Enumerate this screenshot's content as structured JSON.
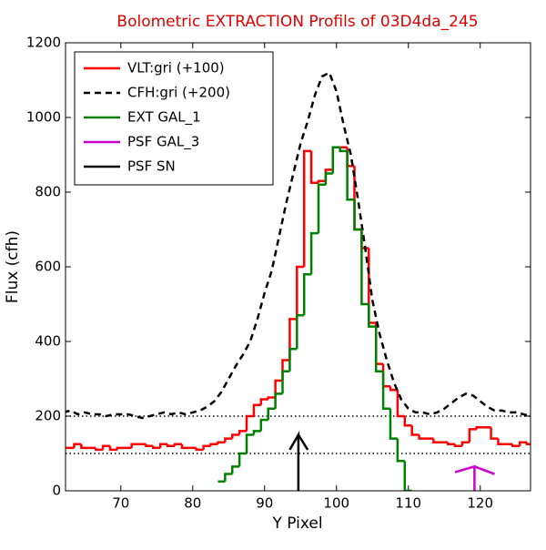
{
  "chart_data": {
    "type": "line",
    "title": "Bolometric EXTRACTION Profils of 03D4da_245",
    "title_color": "#e00000",
    "xlabel": "Y Pixel",
    "ylabel": "Flux (cfh)",
    "xlim": [
      62.3,
      127
    ],
    "ylim": [
      0,
      1200
    ],
    "xticks": [
      70,
      80,
      90,
      100,
      110,
      120
    ],
    "yticks": [
      0,
      200,
      400,
      600,
      800,
      1000,
      1200
    ],
    "legend": "upper left",
    "hlines": [
      100,
      200
    ],
    "series": [
      {
        "name": "VLT:gri (+100)",
        "color": "#ff0000",
        "style": "step",
        "x": [
          62,
          63,
          64,
          65,
          66,
          67,
          68,
          69,
          70,
          71,
          72,
          73,
          74,
          75,
          76,
          77,
          78,
          79,
          80,
          81,
          82,
          83,
          84,
          85,
          86,
          87,
          88,
          89,
          90,
          91,
          92,
          93,
          94,
          95,
          96,
          97,
          98,
          99,
          100,
          101,
          102,
          103,
          104,
          105,
          106,
          107,
          108,
          109,
          110,
          111,
          112,
          113,
          114,
          115,
          116,
          117,
          118,
          119,
          120,
          121,
          122,
          123,
          124,
          125,
          126,
          127
        ],
        "values": [
          115,
          115,
          125,
          115,
          115,
          110,
          120,
          110,
          115,
          115,
          125,
          125,
          120,
          115,
          125,
          120,
          125,
          115,
          115,
          110,
          120,
          125,
          130,
          140,
          150,
          160,
          200,
          230,
          245,
          250,
          295,
          350,
          460,
          600,
          910,
          825,
          830,
          860,
          920,
          920,
          870,
          700,
          650,
          450,
          340,
          280,
          270,
          200,
          175,
          150,
          140,
          140,
          130,
          130,
          125,
          120,
          130,
          165,
          170,
          170,
          140,
          125,
          125,
          120,
          130,
          125
        ]
      },
      {
        "name": "CFH:gri (+200)",
        "color": "#000000",
        "style": "dashed",
        "x": [
          62,
          63,
          64,
          65,
          66,
          67,
          68,
          69,
          70,
          71,
          72,
          73,
          74,
          75,
          76,
          77,
          78,
          79,
          80,
          81,
          82,
          83,
          84,
          85,
          86,
          87,
          88,
          89,
          90,
          91,
          92,
          93,
          94,
          95,
          96,
          97,
          98,
          99,
          100,
          101,
          102,
          103,
          104,
          105,
          106,
          107,
          108,
          109,
          110,
          111,
          112,
          113,
          114,
          115,
          116,
          117,
          118,
          119,
          120,
          121,
          122,
          123,
          124,
          125,
          126,
          127
        ],
        "values": [
          210,
          215,
          205,
          210,
          205,
          205,
          200,
          205,
          205,
          205,
          200,
          195,
          200,
          205,
          210,
          205,
          210,
          205,
          210,
          215,
          225,
          240,
          265,
          300,
          335,
          365,
          400,
          460,
          530,
          590,
          680,
          770,
          850,
          930,
          990,
          1060,
          1110,
          1120,
          1070,
          980,
          900,
          780,
          650,
          510,
          420,
          350,
          290,
          245,
          220,
          210,
          210,
          205,
          210,
          220,
          235,
          250,
          260,
          255,
          240,
          225,
          215,
          215,
          210,
          210,
          205,
          200
        ]
      },
      {
        "name": "EXT GAL_1",
        "color": "#008000",
        "style": "step",
        "x": [
          84,
          85,
          86,
          87,
          88,
          89,
          90,
          91,
          92,
          93,
          94,
          95,
          96,
          97,
          98,
          99,
          100,
          101,
          102,
          103,
          104,
          105,
          106,
          107,
          108,
          109,
          110
        ],
        "values": [
          25,
          45,
          65,
          100,
          150,
          160,
          190,
          220,
          260,
          320,
          380,
          470,
          580,
          690,
          820,
          850,
          920,
          910,
          780,
          700,
          500,
          440,
          320,
          220,
          140,
          80,
          0
        ]
      },
      {
        "name": "PSF GAL_3",
        "color": "#cc00cc",
        "style": "line",
        "x": [
          119.2,
          119.2,
          116.5,
          119.2,
          122
        ],
        "values": [
          0,
          65,
          50,
          65,
          45
        ]
      },
      {
        "name": "PSF SN",
        "color": "#000000",
        "style": "line",
        "x": [
          94.7,
          94.7,
          93.5,
          94.7,
          96
        ],
        "values": [
          0,
          150,
          110,
          150,
          110
        ]
      }
    ]
  }
}
